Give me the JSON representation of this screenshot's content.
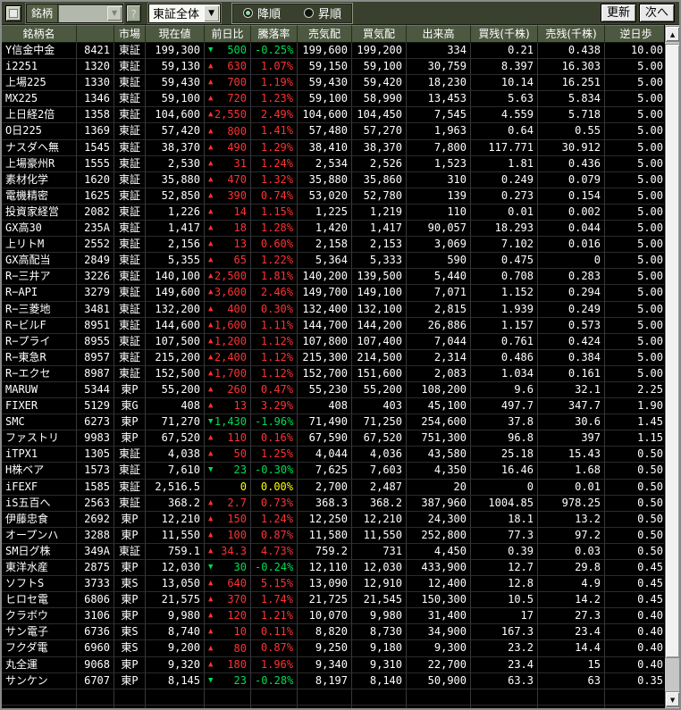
{
  "colors": {
    "up": "#ff3232",
    "down": "#00dc50",
    "flat": "#ffff00",
    "header_bg": "#4d5841",
    "toolbar_bg": "#39412e"
  },
  "toolbar": {
    "meigara_label": "銘柄",
    "meigara_value": "",
    "help_button": "?",
    "market_filter_value": "東証全体",
    "sort_desc_label": "降順",
    "sort_asc_label": "昇順",
    "sort_selected": "desc",
    "update_button": "更新",
    "next_button": "次へ"
  },
  "table": {
    "headers": [
      "銘柄名",
      "",
      "市場",
      "現在値",
      "前日比",
      "騰落率",
      "売気配",
      "買気配",
      "出来高",
      "買残(千株)",
      "売残(千株)",
      "逆日歩"
    ],
    "rows": [
      {
        "name": "Y信金中金",
        "code": "8421",
        "market": "東証",
        "price": "199,300",
        "dir": "down",
        "change": "500",
        "change_pct": "-0.25%",
        "ask": "199,600",
        "bid": "199,200",
        "volume": "334",
        "margin_buy": "0.21",
        "margin_sell": "0.438",
        "premium": "10.00"
      },
      {
        "name": "i2251",
        "code": "1320",
        "market": "東証",
        "price": "59,130",
        "dir": "up",
        "change": "630",
        "change_pct": "1.07%",
        "ask": "59,150",
        "bid": "59,100",
        "volume": "30,759",
        "margin_buy": "8.397",
        "margin_sell": "16.303",
        "premium": "5.00"
      },
      {
        "name": "上場225",
        "code": "1330",
        "market": "東証",
        "price": "59,430",
        "dir": "up",
        "change": "700",
        "change_pct": "1.19%",
        "ask": "59,430",
        "bid": "59,420",
        "volume": "18,230",
        "margin_buy": "10.14",
        "margin_sell": "16.251",
        "premium": "5.00"
      },
      {
        "name": "MX225",
        "code": "1346",
        "market": "東証",
        "price": "59,100",
        "dir": "up",
        "change": "720",
        "change_pct": "1.23%",
        "ask": "59,100",
        "bid": "58,990",
        "volume": "13,453",
        "margin_buy": "5.63",
        "margin_sell": "5.834",
        "premium": "5.00"
      },
      {
        "name": "上日経2倍",
        "code": "1358",
        "market": "東証",
        "price": "104,600",
        "dir": "up",
        "change": "2,550",
        "change_pct": "2.49%",
        "ask": "104,600",
        "bid": "104,450",
        "volume": "7,545",
        "margin_buy": "4.559",
        "margin_sell": "5.718",
        "premium": "5.00"
      },
      {
        "name": "O日225",
        "code": "1369",
        "market": "東証",
        "price": "57,420",
        "dir": "up",
        "change": "800",
        "change_pct": "1.41%",
        "ask": "57,480",
        "bid": "57,270",
        "volume": "1,963",
        "margin_buy": "0.64",
        "margin_sell": "0.55",
        "premium": "5.00"
      },
      {
        "name": "ナスダヘ無",
        "code": "1545",
        "market": "東証",
        "price": "38,370",
        "dir": "up",
        "change": "490",
        "change_pct": "1.29%",
        "ask": "38,410",
        "bid": "38,370",
        "volume": "7,800",
        "margin_buy": "117.771",
        "margin_sell": "30.912",
        "premium": "5.00"
      },
      {
        "name": "上場豪州R",
        "code": "1555",
        "market": "東証",
        "price": "2,530",
        "dir": "up",
        "change": "31",
        "change_pct": "1.24%",
        "ask": "2,534",
        "bid": "2,526",
        "volume": "1,523",
        "margin_buy": "1.81",
        "margin_sell": "0.436",
        "premium": "5.00"
      },
      {
        "name": "素材化学",
        "code": "1620",
        "market": "東証",
        "price": "35,880",
        "dir": "up",
        "change": "470",
        "change_pct": "1.32%",
        "ask": "35,880",
        "bid": "35,860",
        "volume": "310",
        "margin_buy": "0.249",
        "margin_sell": "0.079",
        "premium": "5.00"
      },
      {
        "name": "電機精密",
        "code": "1625",
        "market": "東証",
        "price": "52,850",
        "dir": "up",
        "change": "390",
        "change_pct": "0.74%",
        "ask": "53,020",
        "bid": "52,780",
        "volume": "139",
        "margin_buy": "0.273",
        "margin_sell": "0.154",
        "premium": "5.00"
      },
      {
        "name": "投資家経営",
        "code": "2082",
        "market": "東証",
        "price": "1,226",
        "dir": "up",
        "change": "14",
        "change_pct": "1.15%",
        "ask": "1,225",
        "bid": "1,219",
        "volume": "110",
        "margin_buy": "0.01",
        "margin_sell": "0.002",
        "premium": "5.00"
      },
      {
        "name": "GX高30",
        "code": "235A",
        "market": "東証",
        "price": "1,417",
        "dir": "up",
        "change": "18",
        "change_pct": "1.28%",
        "ask": "1,420",
        "bid": "1,417",
        "volume": "90,057",
        "margin_buy": "18.293",
        "margin_sell": "0.044",
        "premium": "5.00"
      },
      {
        "name": "上リトM",
        "code": "2552",
        "market": "東証",
        "price": "2,156",
        "dir": "up",
        "change": "13",
        "change_pct": "0.60%",
        "ask": "2,158",
        "bid": "2,153",
        "volume": "3,069",
        "margin_buy": "7.102",
        "margin_sell": "0.016",
        "premium": "5.00"
      },
      {
        "name": "GX高配当",
        "code": "2849",
        "market": "東証",
        "price": "5,355",
        "dir": "up",
        "change": "65",
        "change_pct": "1.22%",
        "ask": "5,364",
        "bid": "5,333",
        "volume": "590",
        "margin_buy": "0.475",
        "margin_sell": "0",
        "premium": "5.00"
      },
      {
        "name": "R−三井ア",
        "code": "3226",
        "market": "東証",
        "price": "140,100",
        "dir": "up",
        "change": "2,500",
        "change_pct": "1.81%",
        "ask": "140,200",
        "bid": "139,500",
        "volume": "5,440",
        "margin_buy": "0.708",
        "margin_sell": "0.283",
        "premium": "5.00"
      },
      {
        "name": "R−API",
        "code": "3279",
        "market": "東証",
        "price": "149,600",
        "dir": "up",
        "change": "3,600",
        "change_pct": "2.46%",
        "ask": "149,700",
        "bid": "149,100",
        "volume": "7,071",
        "margin_buy": "1.152",
        "margin_sell": "0.294",
        "premium": "5.00"
      },
      {
        "name": "R−三菱地",
        "code": "3481",
        "market": "東証",
        "price": "132,200",
        "dir": "up",
        "change": "400",
        "change_pct": "0.30%",
        "ask": "132,400",
        "bid": "132,100",
        "volume": "2,815",
        "margin_buy": "1.939",
        "margin_sell": "0.249",
        "premium": "5.00"
      },
      {
        "name": "R−ビルF",
        "code": "8951",
        "market": "東証",
        "price": "144,600",
        "dir": "up",
        "change": "1,600",
        "change_pct": "1.11%",
        "ask": "144,700",
        "bid": "144,200",
        "volume": "26,886",
        "margin_buy": "1.157",
        "margin_sell": "0.573",
        "premium": "5.00"
      },
      {
        "name": "R−プライ",
        "code": "8955",
        "market": "東証",
        "price": "107,500",
        "dir": "up",
        "change": "1,200",
        "change_pct": "1.12%",
        "ask": "107,800",
        "bid": "107,400",
        "volume": "7,044",
        "margin_buy": "0.761",
        "margin_sell": "0.424",
        "premium": "5.00"
      },
      {
        "name": "R−東急R",
        "code": "8957",
        "market": "東証",
        "price": "215,200",
        "dir": "up",
        "change": "2,400",
        "change_pct": "1.12%",
        "ask": "215,300",
        "bid": "214,500",
        "volume": "2,314",
        "margin_buy": "0.486",
        "margin_sell": "0.384",
        "premium": "5.00"
      },
      {
        "name": "R−エクセ",
        "code": "8987",
        "market": "東証",
        "price": "152,500",
        "dir": "up",
        "change": "1,700",
        "change_pct": "1.12%",
        "ask": "152,700",
        "bid": "151,600",
        "volume": "2,083",
        "margin_buy": "1.034",
        "margin_sell": "0.161",
        "premium": "5.00"
      },
      {
        "name": "MARUW",
        "code": "5344",
        "market": "東P",
        "price": "55,200",
        "dir": "up",
        "change": "260",
        "change_pct": "0.47%",
        "ask": "55,230",
        "bid": "55,200",
        "volume": "108,200",
        "margin_buy": "9.6",
        "margin_sell": "32.1",
        "premium": "2.25"
      },
      {
        "name": "FIXER",
        "code": "5129",
        "market": "東G",
        "price": "408",
        "dir": "up",
        "change": "13",
        "change_pct": "3.29%",
        "ask": "408",
        "bid": "403",
        "volume": "45,100",
        "margin_buy": "497.7",
        "margin_sell": "347.7",
        "premium": "1.90"
      },
      {
        "name": "SMC",
        "code": "6273",
        "market": "東P",
        "price": "71,270",
        "dir": "down",
        "change": "1,430",
        "change_pct": "-1.96%",
        "ask": "71,490",
        "bid": "71,250",
        "volume": "254,600",
        "margin_buy": "37.8",
        "margin_sell": "30.6",
        "premium": "1.45"
      },
      {
        "name": "ファストリ",
        "code": "9983",
        "market": "東P",
        "price": "67,520",
        "dir": "up",
        "change": "110",
        "change_pct": "0.16%",
        "ask": "67,590",
        "bid": "67,520",
        "volume": "751,300",
        "margin_buy": "96.8",
        "margin_sell": "397",
        "premium": "1.15"
      },
      {
        "name": "iTPX1",
        "code": "1305",
        "market": "東証",
        "price": "4,038",
        "dir": "up",
        "change": "50",
        "change_pct": "1.25%",
        "ask": "4,044",
        "bid": "4,036",
        "volume": "43,580",
        "margin_buy": "25.18",
        "margin_sell": "15.43",
        "premium": "0.50"
      },
      {
        "name": "H株ベア",
        "code": "1573",
        "market": "東証",
        "price": "7,610",
        "dir": "down",
        "change": "23",
        "change_pct": "-0.30%",
        "ask": "7,625",
        "bid": "7,603",
        "volume": "4,350",
        "margin_buy": "16.46",
        "margin_sell": "1.68",
        "premium": "0.50"
      },
      {
        "name": "iFEXF",
        "code": "1585",
        "market": "東証",
        "price": "2,516.5",
        "dir": "flat",
        "change": "0",
        "change_pct": "0.00%",
        "ask": "2,700",
        "bid": "2,487",
        "volume": "20",
        "margin_buy": "0",
        "margin_sell": "0.01",
        "premium": "0.50"
      },
      {
        "name": "iS五百へ",
        "code": "2563",
        "market": "東証",
        "price": "368.2",
        "dir": "up",
        "change": "2.7",
        "change_pct": "0.73%",
        "ask": "368.3",
        "bid": "368.2",
        "volume": "387,960",
        "margin_buy": "1004.85",
        "margin_sell": "978.25",
        "premium": "0.50"
      },
      {
        "name": "伊藤忠食",
        "code": "2692",
        "market": "東P",
        "price": "12,210",
        "dir": "up",
        "change": "150",
        "change_pct": "1.24%",
        "ask": "12,250",
        "bid": "12,210",
        "volume": "24,300",
        "margin_buy": "18.1",
        "margin_sell": "13.2",
        "premium": "0.50"
      },
      {
        "name": "オープンハ",
        "code": "3288",
        "market": "東P",
        "price": "11,550",
        "dir": "up",
        "change": "100",
        "change_pct": "0.87%",
        "ask": "11,580",
        "bid": "11,550",
        "volume": "252,800",
        "margin_buy": "77.3",
        "margin_sell": "97.2",
        "premium": "0.50"
      },
      {
        "name": "SM日グ株",
        "code": "349A",
        "market": "東証",
        "price": "759.1",
        "dir": "up",
        "change": "34.3",
        "change_pct": "4.73%",
        "ask": "759.2",
        "bid": "731",
        "volume": "4,450",
        "margin_buy": "0.39",
        "margin_sell": "0.03",
        "premium": "0.50"
      },
      {
        "name": "東洋水産",
        "code": "2875",
        "market": "東P",
        "price": "12,030",
        "dir": "down",
        "change": "30",
        "change_pct": "-0.24%",
        "ask": "12,110",
        "bid": "12,030",
        "volume": "433,900",
        "margin_buy": "12.7",
        "margin_sell": "29.8",
        "premium": "0.45"
      },
      {
        "name": "ソフトS",
        "code": "3733",
        "market": "東S",
        "price": "13,050",
        "dir": "up",
        "change": "640",
        "change_pct": "5.15%",
        "ask": "13,090",
        "bid": "12,910",
        "volume": "12,400",
        "margin_buy": "12.8",
        "margin_sell": "4.9",
        "premium": "0.45"
      },
      {
        "name": "ヒロセ電",
        "code": "6806",
        "market": "東P",
        "price": "21,575",
        "dir": "up",
        "change": "370",
        "change_pct": "1.74%",
        "ask": "21,725",
        "bid": "21,545",
        "volume": "150,300",
        "margin_buy": "10.5",
        "margin_sell": "14.2",
        "premium": "0.45"
      },
      {
        "name": "クラボウ",
        "code": "3106",
        "market": "東P",
        "price": "9,980",
        "dir": "up",
        "change": "120",
        "change_pct": "1.21%",
        "ask": "10,070",
        "bid": "9,980",
        "volume": "31,400",
        "margin_buy": "17",
        "margin_sell": "27.3",
        "premium": "0.40"
      },
      {
        "name": "サン電子",
        "code": "6736",
        "market": "東S",
        "price": "8,740",
        "dir": "up",
        "change": "10",
        "change_pct": "0.11%",
        "ask": "8,820",
        "bid": "8,730",
        "volume": "34,900",
        "margin_buy": "167.3",
        "margin_sell": "23.4",
        "premium": "0.40"
      },
      {
        "name": "フクダ電",
        "code": "6960",
        "market": "東S",
        "price": "9,200",
        "dir": "up",
        "change": "80",
        "change_pct": "0.87%",
        "ask": "9,250",
        "bid": "9,180",
        "volume": "9,300",
        "margin_buy": "23.2",
        "margin_sell": "14.4",
        "premium": "0.40"
      },
      {
        "name": "丸全運",
        "code": "9068",
        "market": "東P",
        "price": "9,320",
        "dir": "up",
        "change": "180",
        "change_pct": "1.96%",
        "ask": "9,340",
        "bid": "9,310",
        "volume": "22,700",
        "margin_buy": "23.4",
        "margin_sell": "15",
        "premium": "0.40"
      },
      {
        "name": "サンケン",
        "code": "6707",
        "market": "東P",
        "price": "8,145",
        "dir": "down",
        "change": "23",
        "change_pct": "-0.28%",
        "ask": "8,197",
        "bid": "8,140",
        "volume": "50,900",
        "margin_buy": "63.3",
        "margin_sell": "63",
        "premium": "0.35"
      }
    ]
  },
  "scrollbar": {
    "up_icon": "▲",
    "down_icon": "▼"
  }
}
